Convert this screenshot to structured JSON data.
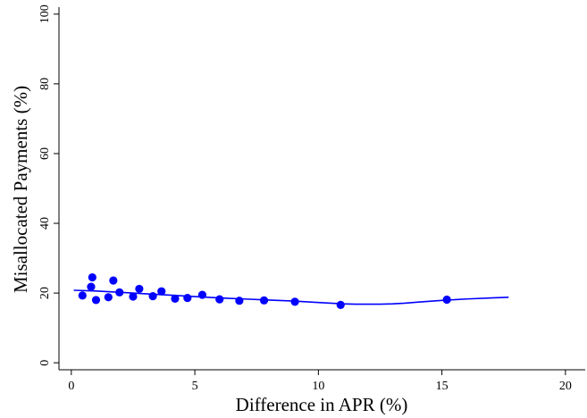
{
  "chart_data": {
    "type": "scatter",
    "title": "",
    "xlabel": "Difference in APR (%)",
    "ylabel": "Misallocated Payments (%)",
    "xlim": [
      -0.5,
      20.8
    ],
    "ylim": [
      -2,
      102
    ],
    "xticks": [
      0,
      5,
      10,
      15,
      20
    ],
    "yticks": [
      0,
      20,
      40,
      60,
      80,
      100
    ],
    "xtick_labels": [
      "0",
      "5",
      "10",
      "15",
      "20"
    ],
    "ytick_labels": [
      "0",
      "20",
      "40",
      "60",
      "80",
      "100"
    ],
    "grid": false,
    "legend": "none",
    "color": "#0000ff",
    "series": [
      {
        "kind": "points",
        "x": [
          0.45,
          0.8,
          0.85,
          1.0,
          1.5,
          1.7,
          1.95,
          2.5,
          2.75,
          3.3,
          3.65,
          4.2,
          4.7,
          5.3,
          6.0,
          6.8,
          7.8,
          9.05,
          10.9,
          15.2
        ],
        "y": [
          19.3,
          21.8,
          24.5,
          18.0,
          18.8,
          23.6,
          20.2,
          19.0,
          21.2,
          19.1,
          20.5,
          18.4,
          18.6,
          19.5,
          18.2,
          17.8,
          17.9,
          17.5,
          16.6,
          18.1
        ]
      },
      {
        "kind": "fitted-line",
        "x": [
          0.1,
          1.0,
          2.0,
          3.0,
          4.0,
          5.0,
          6.0,
          7.0,
          8.0,
          9.0,
          10.0,
          10.5,
          11.0,
          11.5,
          12.0,
          12.5,
          13.0,
          13.5,
          14.0,
          15.0,
          16.0,
          17.0,
          17.7
        ],
        "y": [
          20.8,
          20.6,
          20.2,
          19.8,
          19.4,
          19.0,
          18.6,
          18.3,
          18.0,
          17.7,
          17.3,
          17.1,
          16.9,
          16.8,
          16.8,
          16.8,
          16.9,
          17.1,
          17.4,
          17.9,
          18.3,
          18.6,
          18.8
        ]
      }
    ]
  }
}
